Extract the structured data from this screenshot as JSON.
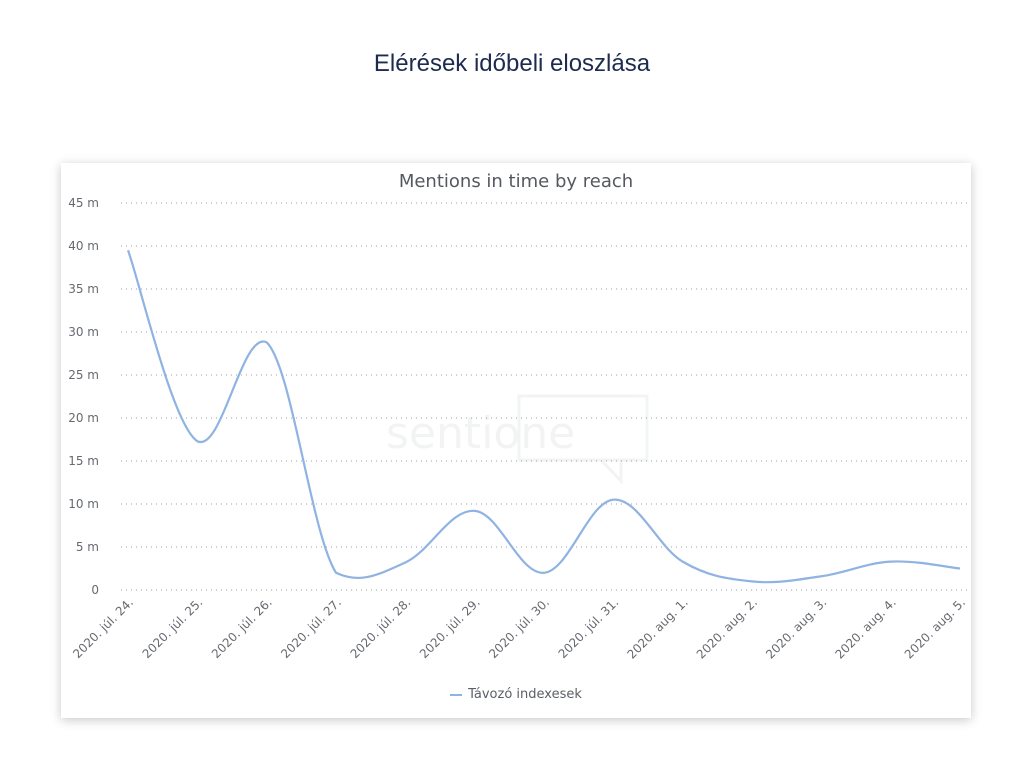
{
  "page": {
    "heading": "Elérések időbeli eloszlása"
  },
  "chart_data": {
    "type": "line",
    "title": "Mentions in time by reach",
    "xlabel": "",
    "ylabel": "",
    "categories": [
      "2020. júl. 24.",
      "2020. júl. 25.",
      "2020. júl. 26.",
      "2020. júl. 27.",
      "2020. júl. 28.",
      "2020. júl. 29.",
      "2020. júl. 30.",
      "2020. júl. 31.",
      "2020. aug. 1.",
      "2020. aug. 2.",
      "2020. aug. 3.",
      "2020. aug. 4.",
      "2020. aug. 5."
    ],
    "series": [
      {
        "name": "Távozó indexesek",
        "values": [
          39.5,
          17.3,
          28.8,
          2.0,
          3.2,
          9.2,
          2.0,
          10.5,
          3.3,
          1.0,
          1.6,
          3.3,
          2.5
        ]
      }
    ],
    "yticks": [
      "0",
      "5 m",
      "10 m",
      "15 m",
      "20 m",
      "25 m",
      "30 m",
      "35 m",
      "40 m",
      "45 m"
    ],
    "ylim": [
      0,
      45
    ],
    "yunit": "million",
    "grid": true,
    "legend_position": "bottom-center",
    "line_color": "#8fb3e2",
    "watermark": "sentione"
  }
}
